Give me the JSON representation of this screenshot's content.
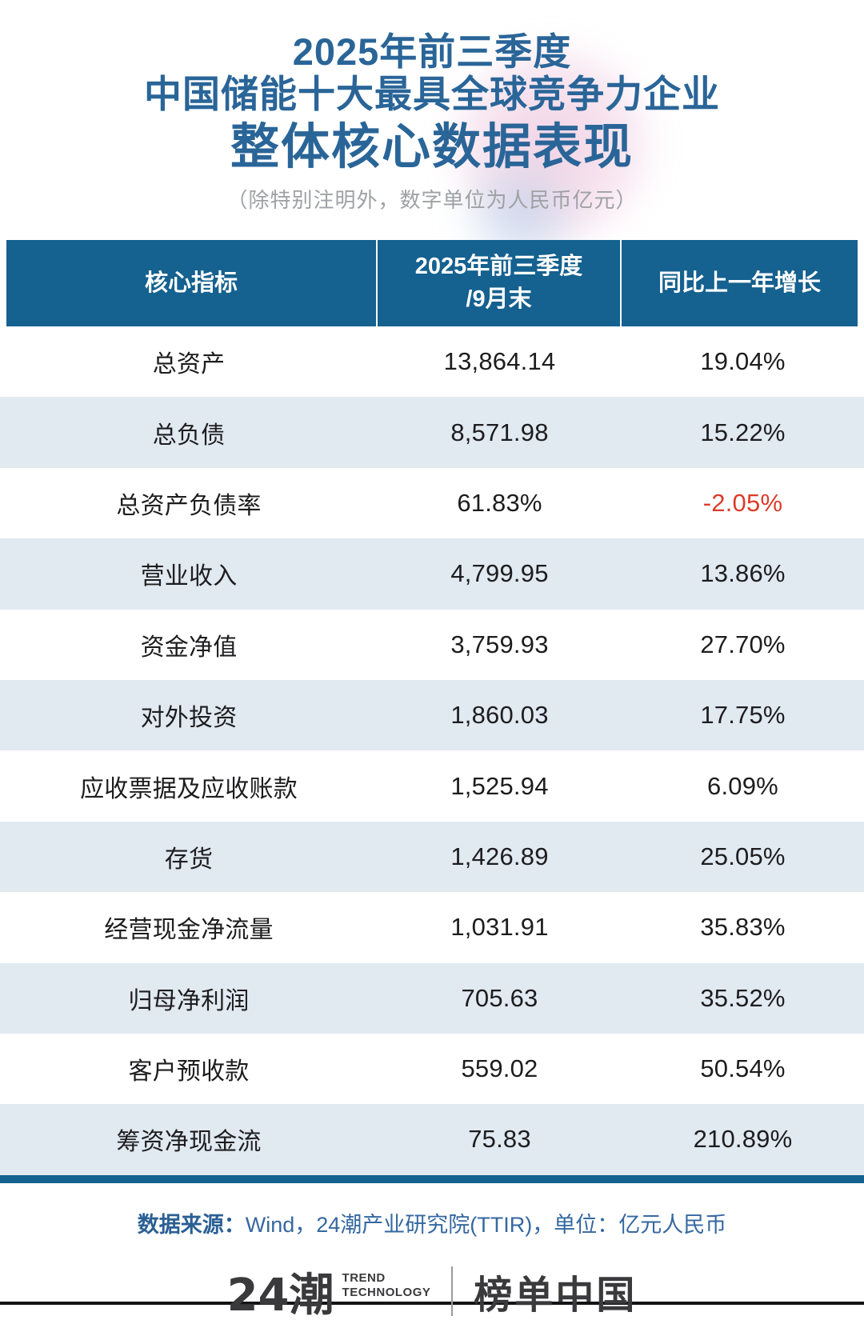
{
  "title": {
    "line1": "2025年前三季度",
    "line2": "中国储能十大最具全球竞争力企业",
    "line3": "整体核心数据表现",
    "subtitle": "（除特别注明外，数字单位为人民币亿元）"
  },
  "table": {
    "header": {
      "col1": "核心指标",
      "col2_line1": "2025年前三季度",
      "col2_line2": "/9月末",
      "col3": "同比上一年增长"
    },
    "rows": [
      {
        "label": "总资产",
        "value": "13,864.14",
        "growth": "19.04%"
      },
      {
        "label": "总负债",
        "value": "8,571.98",
        "growth": "15.22%"
      },
      {
        "label": "总资产负债率",
        "value": "61.83%",
        "growth": "-2.05%"
      },
      {
        "label": "营业收入",
        "value": "4,799.95",
        "growth": "13.86%"
      },
      {
        "label": "资金净值",
        "value": "3,759.93",
        "growth": "27.70%"
      },
      {
        "label": "对外投资",
        "value": "1,860.03",
        "growth": "17.75%"
      },
      {
        "label": "应收票据及应收账款",
        "value": "1,525.94",
        "growth": "6.09%"
      },
      {
        "label": "存货",
        "value": "1,426.89",
        "growth": "25.05%"
      },
      {
        "label": "经营现金净流量",
        "value": "1,031.91",
        "growth": "35.83%"
      },
      {
        "label": "归母净利润",
        "value": "705.63",
        "growth": "35.52%"
      },
      {
        "label": "客户预收款",
        "value": "559.02",
        "growth": "50.54%"
      },
      {
        "label": "筹资净现金流",
        "value": "75.83",
        "growth": "210.89%"
      }
    ]
  },
  "footer": {
    "source_label": "数据来源：",
    "source_text": "Wind，24潮产业研究院(TTIR)，单位：亿元人民币"
  },
  "logo": {
    "brand": "24潮",
    "tagline_line1": "TREND",
    "tagline_line2": "TECHNOLOGY",
    "partner": "榜单中国"
  },
  "colors": {
    "title_color": "#2A6598",
    "header_bg": "#15618F",
    "row_alt": "#E1E9F1",
    "negative": "#DB3C2B",
    "footer_text": "#3568A0"
  }
}
